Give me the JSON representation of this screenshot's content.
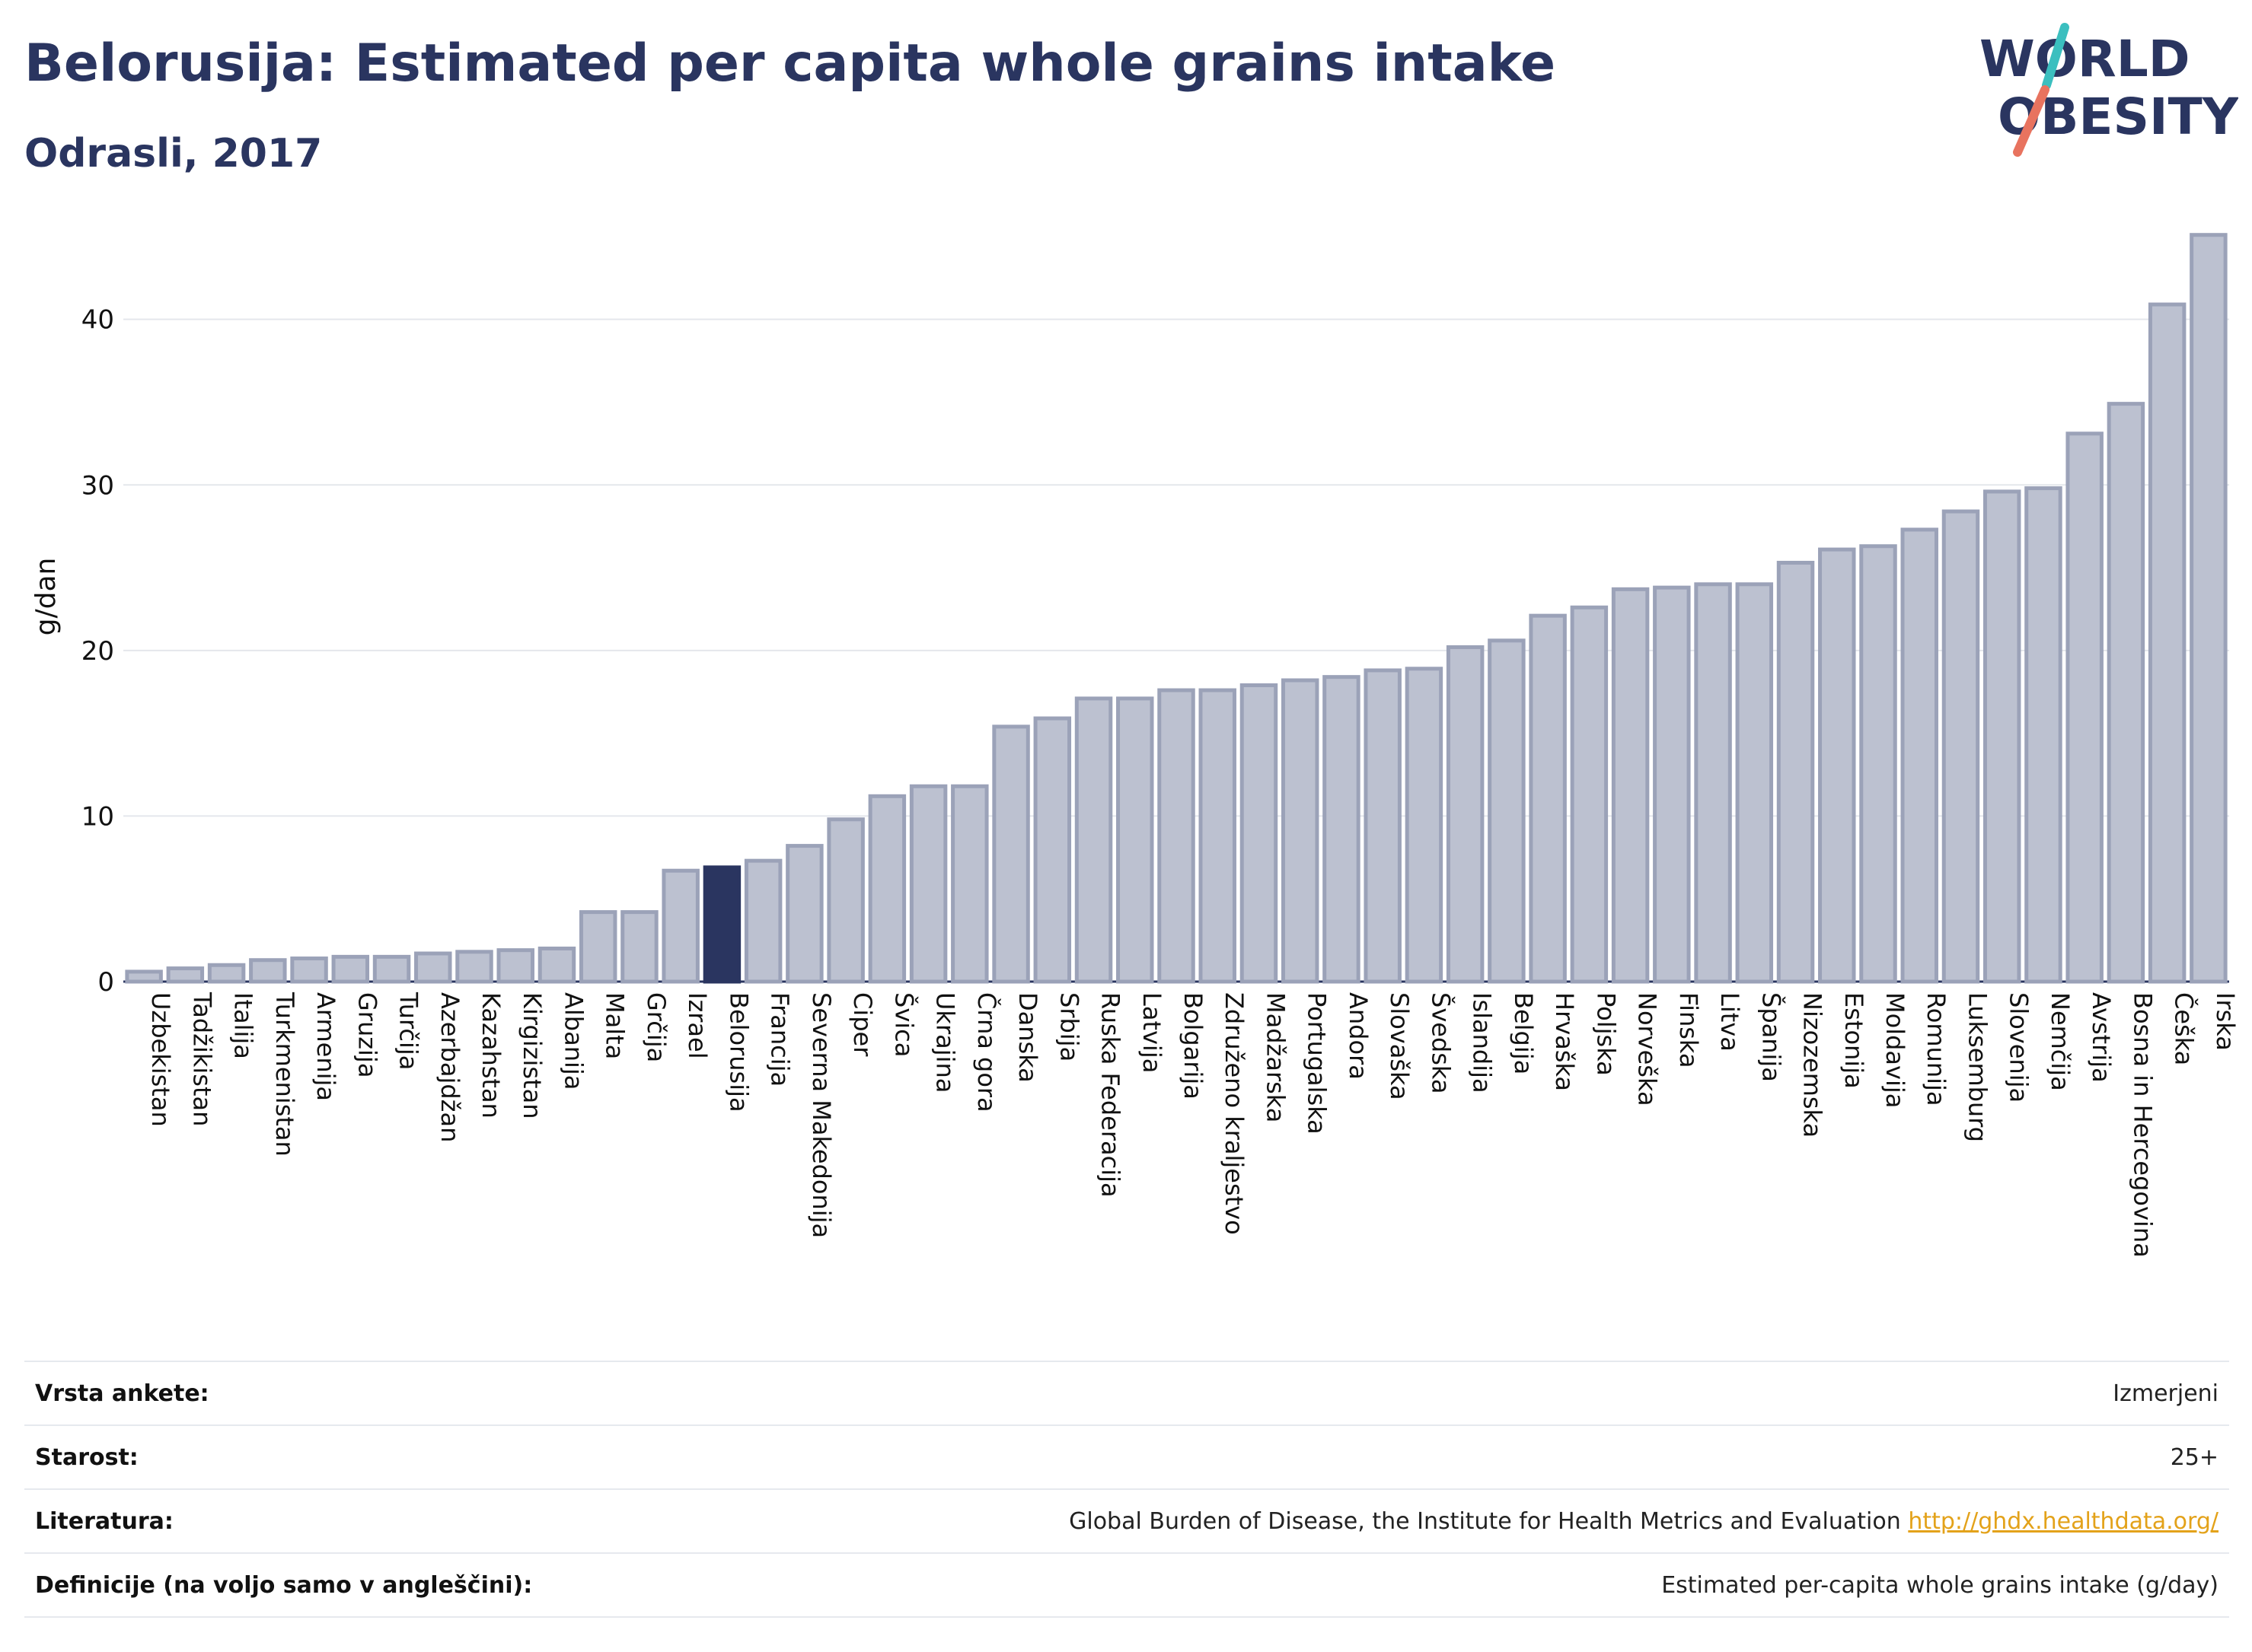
{
  "header": {
    "title": "Belorusija: Estimated per capita whole grains intake",
    "subtitle": "Odrasli, 2017"
  },
  "logo": {
    "line1": "WORLD",
    "line2": "OBESITY"
  },
  "colors": {
    "bar": "#bcc1d0",
    "bar_border": "#9ba2b8",
    "highlight": "#2a3560",
    "text": "#2a3560",
    "slash_teal": "#3bbfbf",
    "slash_coral": "#e8735f"
  },
  "chart_data": {
    "type": "bar",
    "ylabel": "g/dan",
    "ylim": [
      0,
      45.5
    ],
    "yticks": [
      0,
      10,
      20,
      30,
      40
    ],
    "grid": true,
    "highlight": "Belorusija",
    "categories": [
      "Uzbekistan",
      "Tadžikistan",
      "Italija",
      "Turkmenistan",
      "Armenija",
      "Gruzija",
      "Turčija",
      "Azerbajdžan",
      "Kazahstan",
      "Kirgizistan",
      "Albanija",
      "Malta",
      "Grčija",
      "Izrael",
      "Belorusija",
      "Francija",
      "Severna Makedonija",
      "Ciper",
      "Švica",
      "Ukrajina",
      "Črna gora",
      "Danska",
      "Srbija",
      "Ruska Federacija",
      "Latvija",
      "Bolgarija",
      "Združeno kraljestvo",
      "Madžarska",
      "Portugalska",
      "Andora",
      "Slovaška",
      "Švedska",
      "Islandija",
      "Belgija",
      "Hrvaška",
      "Poljska",
      "Norveška",
      "Finska",
      "Litva",
      "Španija",
      "Nizozemska",
      "Estonija",
      "Moldavija",
      "Romunija",
      "Luksemburg",
      "Slovenija",
      "Nemčija",
      "Avstrija",
      "Bosna in Hercegovina",
      "Češka",
      "Irska"
    ],
    "values": [
      0.6,
      0.8,
      1.0,
      1.3,
      1.4,
      1.5,
      1.5,
      1.7,
      1.8,
      1.9,
      2.0,
      4.2,
      4.2,
      6.7,
      6.9,
      7.3,
      8.2,
      9.8,
      11.2,
      11.8,
      11.8,
      15.4,
      15.9,
      17.1,
      17.1,
      17.6,
      17.6,
      17.9,
      18.2,
      18.4,
      18.8,
      18.9,
      20.2,
      20.6,
      22.1,
      22.6,
      23.7,
      23.8,
      24.0,
      24.0,
      25.3,
      26.1,
      26.3,
      27.3,
      28.4,
      29.6,
      29.8,
      33.1,
      34.9,
      40.9,
      45.1
    ]
  },
  "info": {
    "rows": [
      {
        "key": "Vrsta ankete:",
        "value": "Izmerjeni"
      },
      {
        "key": "Starost:",
        "value": "25+"
      },
      {
        "key": "Literatura:",
        "value": "Global Burden of Disease, the Institute for Health Metrics and Evaluation",
        "link": "http://ghdx.healthdata.org/"
      },
      {
        "key": "Definicije (na voljo samo v angleščini):",
        "value": "Estimated per-capita whole grains intake (g/day)"
      }
    ]
  }
}
